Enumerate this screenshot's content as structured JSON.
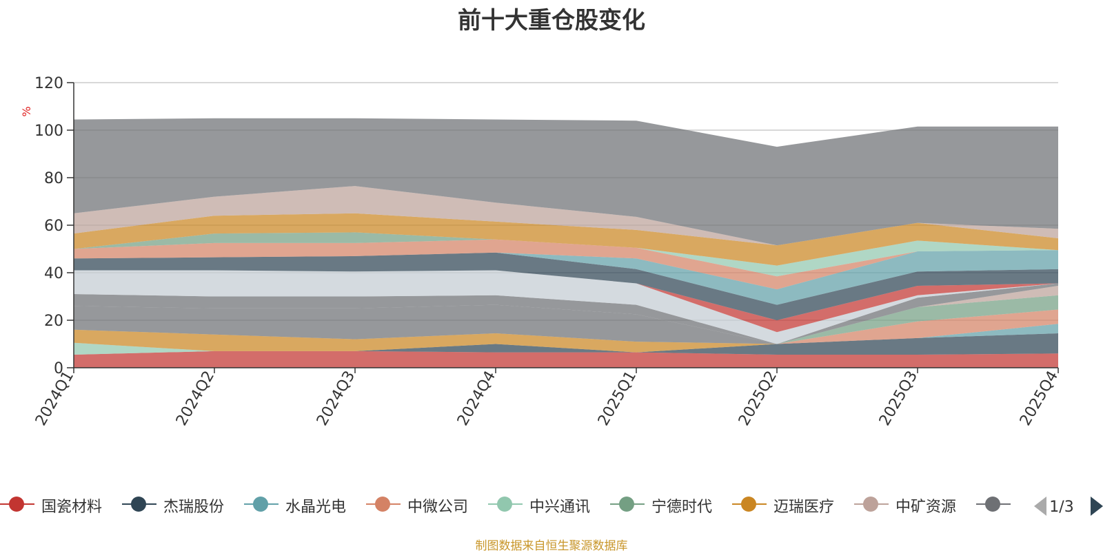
{
  "title": "前十大重仓股变化",
  "source_note": "制图数据来自恒生聚源数据库",
  "pagination": {
    "text": "1/3"
  },
  "chart_data": {
    "type": "area",
    "stacked": true,
    "title": "前十大重仓股变化",
    "ylabel": "%",
    "ylim": [
      0,
      120
    ],
    "yticks": [
      0,
      20,
      40,
      60,
      80,
      100,
      120
    ],
    "x": [
      "2024Q1",
      "2024Q2",
      "2024Q3",
      "2024Q4",
      "2025Q1",
      "2025Q2",
      "2025Q3",
      "2025Q4"
    ],
    "grid": true,
    "legend_position": "bottom",
    "series": [
      {
        "name": "国瓷材料",
        "color": "#c23531",
        "values": [
          5.5,
          7,
          7,
          6.5,
          6.5,
          5.5,
          5.5,
          6
        ]
      },
      {
        "name": "杰瑞股份",
        "color": "#2f4554",
        "values": [
          0,
          0,
          0,
          3.5,
          0,
          4.5,
          7,
          8.5
        ]
      },
      {
        "name": "水晶光电",
        "color": "#61a0a8",
        "values": [
          0,
          0,
          0,
          0,
          0,
          0,
          0,
          4
        ]
      },
      {
        "name": "中微公司",
        "color": "#d48265",
        "values": [
          0,
          0,
          0,
          0,
          0,
          0,
          7,
          6
        ]
      },
      {
        "name": "中兴通讯",
        "color": "#91c7ae",
        "values": [
          5,
          0,
          0,
          0,
          0,
          0,
          0,
          0
        ]
      },
      {
        "name": "宁德时代",
        "color": "#749f83",
        "values": [
          0,
          0,
          0,
          0,
          0,
          0,
          6,
          6
        ]
      },
      {
        "name": "迈瑞医疗",
        "color": "#ca8622",
        "values": [
          5.5,
          7,
          5,
          4.5,
          4.5,
          0,
          0,
          0
        ]
      },
      {
        "name": "中矿资源",
        "color": "#bda29a",
        "values": [
          0,
          0,
          0,
          0,
          0,
          0,
          0,
          4
        ]
      },
      {
        "name": "",
        "color": "#6e7074",
        "values": [
          10,
          11,
          13,
          12,
          11.5,
          0,
          4,
          1
        ]
      },
      {
        "name": "",
        "color": "#546570",
        "values": [
          0,
          0,
          0,
          0,
          0,
          0,
          0,
          0
        ]
      }
    ]
  },
  "layers": [
    {
      "color": "#c23531",
      "values": [
        5.5,
        7,
        7,
        6.5,
        6.5,
        5.5,
        5.5,
        6
      ]
    },
    {
      "color": "#2f4554",
      "values": [
        0,
        0,
        0,
        3.5,
        0,
        4.5,
        7,
        8.5
      ]
    },
    {
      "color": "#61a0a8",
      "values": [
        0,
        0,
        0,
        0,
        0,
        0,
        0,
        4
      ]
    },
    {
      "color": "#d48265",
      "values": [
        0,
        0,
        0,
        0,
        0,
        0,
        7,
        6
      ]
    },
    {
      "color": "#91c7ae",
      "values": [
        5,
        0,
        0,
        0,
        0,
        0,
        0,
        0
      ]
    },
    {
      "color": "#749f83",
      "values": [
        0,
        0,
        0,
        0,
        0,
        0,
        6,
        6
      ]
    },
    {
      "color": "#ca8622",
      "values": [
        5.5,
        7,
        5,
        4.5,
        4.5,
        0,
        0,
        0
      ]
    },
    {
      "color": "#bda29a",
      "values": [
        0,
        0,
        0,
        0,
        0,
        0,
        0,
        4
      ]
    },
    {
      "color": "#6e7074",
      "values": [
        10,
        11,
        13,
        12,
        11.5,
        0,
        4,
        1
      ]
    },
    {
      "color": "#546570",
      "values": [
        0,
        0,
        0,
        0,
        0,
        0,
        0,
        0
      ]
    },
    {
      "color": "#6e7074",
      "values": [
        5,
        5,
        5,
        4,
        4,
        0,
        0,
        0
      ]
    },
    {
      "color": "#c4ccd3",
      "values": [
        10,
        11,
        10.5,
        10.5,
        9,
        5,
        1,
        0
      ]
    },
    {
      "color": "#c23531",
      "values": [
        0,
        0,
        0,
        0,
        0,
        5,
        4,
        0
      ]
    },
    {
      "color": "#2f4554",
      "values": [
        5,
        5.5,
        6.5,
        7.5,
        6,
        6.5,
        6,
        6
      ]
    },
    {
      "color": "#61a0a8",
      "values": [
        0,
        0,
        0,
        0,
        4.5,
        6.5,
        8.5,
        8
      ]
    },
    {
      "color": "#d48265",
      "values": [
        4,
        6,
        5.5,
        5.5,
        4.5,
        5.5,
        0,
        0
      ]
    },
    {
      "color": "#91c7ae",
      "values": [
        0,
        0,
        0,
        0,
        0,
        4.5,
        4.5,
        0
      ]
    },
    {
      "color": "#749f83",
      "values": [
        0,
        4,
        4.5,
        0,
        0,
        0,
        0,
        0
      ]
    },
    {
      "color": "#ca8622",
      "values": [
        6.5,
        7.5,
        8,
        7.5,
        7.5,
        8.5,
        7.5,
        5
      ]
    },
    {
      "color": "#bda29a",
      "values": [
        8.5,
        8,
        11.5,
        8,
        5.5,
        0,
        0,
        4
      ]
    },
    {
      "color": "#6e7074",
      "values": [
        39.5,
        33,
        28.5,
        35,
        40.5,
        41.5,
        40.5,
        43
      ]
    }
  ],
  "legend_visible": [
    {
      "label": "国瓷材料",
      "color": "#c23531"
    },
    {
      "label": "杰瑞股份",
      "color": "#2f4554"
    },
    {
      "label": "水晶光电",
      "color": "#61a0a8"
    },
    {
      "label": "中微公司",
      "color": "#d48265"
    },
    {
      "label": "中兴通讯",
      "color": "#91c7ae"
    },
    {
      "label": "宁德时代",
      "color": "#749f83"
    },
    {
      "label": "迈瑞医疗",
      "color": "#ca8622"
    },
    {
      "label": "中矿资源",
      "color": "#bda29a"
    },
    {
      "label": "",
      "color": "#6e7074"
    }
  ],
  "colors": {
    "axis": "#333333",
    "grid": "#cccccc",
    "ylabel": "#e02020",
    "source": "#c8962a",
    "pager_active": "#2f4554",
    "pager_inactive": "#aaaaaa"
  }
}
